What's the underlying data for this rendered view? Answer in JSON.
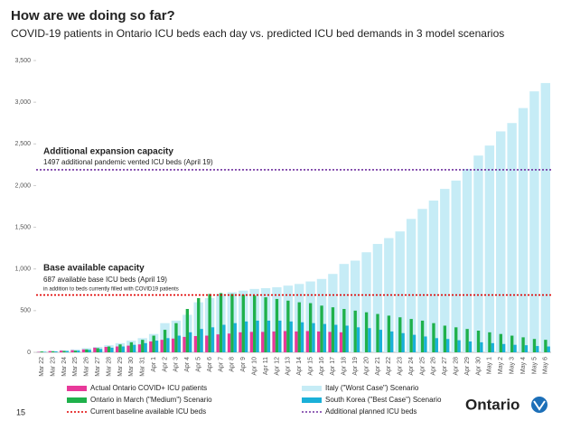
{
  "chart_data": {
    "type": "bar",
    "title": "How are we doing so far?",
    "subtitle": "COVID-19 patients in Ontario ICU beds each day vs. predicted ICU bed demands in 3 model scenarios",
    "categories": [
      "Mar 22",
      "Mar 23",
      "Mar 24",
      "Mar 25",
      "Mar 26",
      "Mar 27",
      "Mar 28",
      "Mar 29",
      "Mar 30",
      "Mar 31",
      "Apr 1",
      "Apr 2",
      "Apr 3",
      "Apr 4",
      "Apr 5",
      "Apr 6",
      "Apr 7",
      "Apr 8",
      "Apr 9",
      "Apr 10",
      "Apr 11",
      "Apr 12",
      "Apr 13",
      "Apr 14",
      "Apr 15",
      "Apr 16",
      "Apr 17",
      "Apr 18",
      "Apr 19",
      "Apr 20",
      "Apr 21",
      "Apr 22",
      "Apr 23",
      "Apr 24",
      "Apr 25",
      "Apr 26",
      "Apr 27",
      "Apr 28",
      "Apr 29",
      "Apr 30",
      "May 1",
      "May 2",
      "May 3",
      "May 4",
      "May 5",
      "May 6"
    ],
    "series": [
      {
        "name": "Actual Ontario COVID+ ICU patients",
        "color": "#e8399a",
        "values": [
          5,
          15,
          20,
          25,
          35,
          55,
          65,
          70,
          80,
          95,
          130,
          150,
          165,
          185,
          195,
          200,
          215,
          225,
          240,
          245,
          245,
          250,
          255,
          250,
          255,
          250,
          245,
          240,
          null,
          null,
          null,
          null,
          null,
          null,
          null,
          null,
          null,
          null,
          null,
          null,
          null,
          null,
          null,
          null,
          null,
          null
        ]
      },
      {
        "name": "Italy (\"Worst Case\") Scenario",
        "color": "#c6ecf6",
        "values": [
          10,
          15,
          25,
          35,
          50,
          65,
          85,
          110,
          140,
          170,
          220,
          350,
          380,
          450,
          600,
          650,
          700,
          720,
          740,
          760,
          770,
          780,
          800,
          820,
          850,
          880,
          940,
          1060,
          1100,
          1200,
          1300,
          1370,
          1450,
          1600,
          1720,
          1820,
          1960,
          2060,
          2200,
          2360,
          2480,
          2650,
          2750,
          2930,
          3130,
          3230
        ]
      },
      {
        "name": "Ontario in March (\"Medium\") Scenario",
        "color": "#1fb14b",
        "values": [
          10,
          13,
          17,
          20,
          35,
          50,
          70,
          95,
          120,
          150,
          200,
          270,
          350,
          520,
          650,
          700,
          710,
          700,
          690,
          680,
          660,
          640,
          620,
          600,
          590,
          560,
          540,
          520,
          500,
          480,
          460,
          440,
          420,
          400,
          380,
          350,
          320,
          300,
          280,
          260,
          240,
          220,
          200,
          180,
          160,
          150
        ]
      },
      {
        "name": "South Korea (\"Best Case\") Scenario",
        "color": "#1ab0d8",
        "values": [
          5,
          10,
          15,
          20,
          30,
          40,
          55,
          70,
          90,
          110,
          140,
          170,
          200,
          240,
          280,
          300,
          330,
          350,
          370,
          380,
          380,
          380,
          370,
          360,
          350,
          340,
          330,
          320,
          300,
          290,
          270,
          250,
          230,
          210,
          190,
          170,
          160,
          145,
          130,
          120,
          110,
          100,
          90,
          85,
          75,
          70
        ]
      }
    ],
    "reference_lines": [
      {
        "name": "Current baseline available ICU beds",
        "value": 687,
        "color": "#e00000"
      },
      {
        "name": "Additional planned ICU beds",
        "value": 2190,
        "color": "#7030a0"
      }
    ],
    "annotations": [
      "Additional expansion capacity",
      "1497 additional pandemic vented ICU beds (April 19)",
      "Base available capacity",
      "687 available base ICU beds (April 19)",
      "in addition to beds currently filled with COVID19 patients"
    ],
    "ylim": [
      0,
      3500
    ],
    "yticks": [
      0,
      500,
      {
        "value": 1000,
        "label": "1,000"
      },
      {
        "value": 1500,
        "label": "1,500"
      },
      {
        "value": 2000,
        "label": "2,000"
      },
      {
        "value": 2500,
        "label": "2,500"
      },
      {
        "value": 3000,
        "label": "3,000"
      },
      {
        "value": 3500,
        "label": "3,500"
      }
    ],
    "grid": false
  },
  "page_number": "15",
  "logo": "Ontario"
}
